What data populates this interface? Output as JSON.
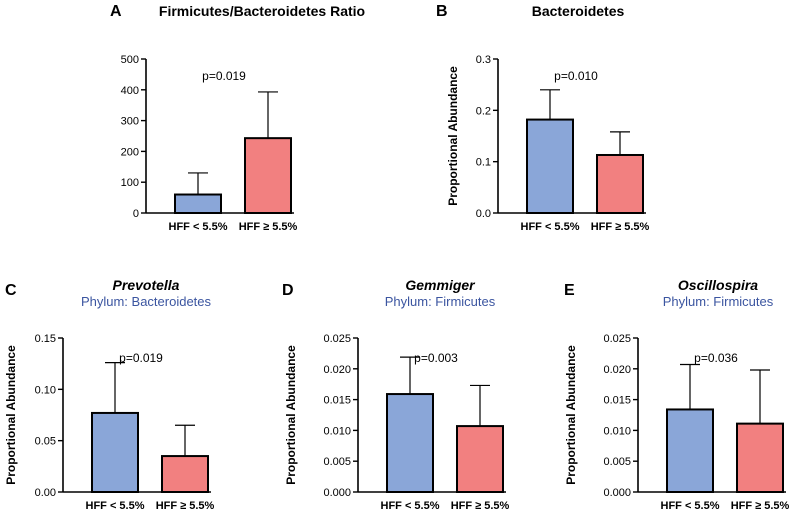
{
  "colors": {
    "hff_low": "#8aa6d8",
    "hff_high": "#f28080",
    "subtitle": "#3b55a0"
  },
  "chart_data": [
    {
      "panel": "A",
      "type": "bar",
      "title": "Firmicutes/Bacteroidetes Ratio",
      "subtitle": "",
      "ylabel": "",
      "pvalue": "p=0.019",
      "categories": [
        "HFF < 5.5%",
        "HFF  ≥ 5.5%"
      ],
      "values": [
        60,
        243
      ],
      "error_upper": [
        130,
        393
      ],
      "ylim": [
        0,
        500
      ],
      "yticks": [
        "0",
        "100",
        "200",
        "300",
        "400",
        "500"
      ]
    },
    {
      "panel": "B",
      "type": "bar",
      "title": "Bacteroidetes",
      "subtitle": "",
      "ylabel": "Proportional Abundance",
      "pvalue": "p=0.010",
      "categories": [
        "HFF < 5.5%",
        "HFF  ≥ 5.5%"
      ],
      "values": [
        0.182,
        0.113
      ],
      "error_upper": [
        0.24,
        0.158
      ],
      "ylim": [
        0,
        0.3
      ],
      "yticks": [
        "0.0",
        "0.1",
        "0.2",
        "0.3"
      ]
    },
    {
      "panel": "C",
      "type": "bar",
      "title": "Prevotella",
      "subtitle": "Phylum: Bacteroidetes",
      "ylabel": "Proportional Abundance",
      "pvalue": "p=0.019",
      "categories": [
        "HFF < 5.5%",
        "HFF  ≥ 5.5%"
      ],
      "values": [
        0.077,
        0.035
      ],
      "error_upper": [
        0.126,
        0.065
      ],
      "ylim": [
        0,
        0.15
      ],
      "yticks": [
        "0.00",
        "0.05",
        "0.10",
        "0.15"
      ]
    },
    {
      "panel": "D",
      "type": "bar",
      "title": "Gemmiger",
      "subtitle": "Phylum: Firmicutes",
      "ylabel": "Proportional Abundance",
      "pvalue": "p=0.003",
      "categories": [
        "HFF < 5.5%",
        "HFF  ≥ 5.5%"
      ],
      "values": [
        0.0159,
        0.0107
      ],
      "error_upper": [
        0.0219,
        0.0173
      ],
      "ylim": [
        0,
        0.025
      ],
      "yticks": [
        "0.000",
        "0.005",
        "0.010",
        "0.015",
        "0.020",
        "0.025"
      ]
    },
    {
      "panel": "E",
      "type": "bar",
      "title": "Oscillospira",
      "subtitle": "Phylum: Firmicutes",
      "ylabel": "Proportional Abundance",
      "pvalue": "p=0.036",
      "categories": [
        "HFF < 5.5%",
        "HFF  ≥ 5.5%"
      ],
      "values": [
        0.0134,
        0.0111
      ],
      "error_upper": [
        0.0207,
        0.0198
      ],
      "ylim": [
        0,
        0.025
      ],
      "yticks": [
        "0.000",
        "0.005",
        "0.010",
        "0.015",
        "0.020",
        "0.025"
      ]
    }
  ]
}
